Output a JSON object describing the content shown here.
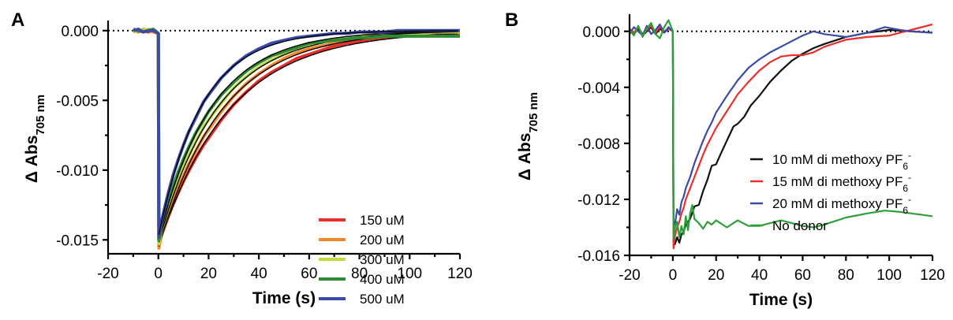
{
  "chart_data": [
    {
      "type": "line",
      "panel_label": "A",
      "xlabel": "Time (s)",
      "ylabel_main": "Δ Abs",
      "ylabel_sub": "705 nm",
      "xlim": [
        -20,
        120
      ],
      "ylim": [
        -0.016,
        0.0005
      ],
      "xticks": [
        -20,
        0,
        20,
        40,
        60,
        80,
        100,
        120
      ],
      "yticks": [
        0.0,
        -0.005,
        -0.01,
        -0.015
      ],
      "ytick_labels": [
        "0.000",
        "-0.005",
        "-0.010",
        "-0.015"
      ],
      "zero_line": "dotted",
      "legend_position": "bottom-right",
      "series": [
        {
          "name": "150 uM",
          "color": "#e8302a",
          "decay_tau": 28,
          "x": [
            -10,
            -8,
            -6,
            -4,
            -2,
            0,
            0.2,
            1,
            2,
            4,
            6,
            8,
            10,
            12,
            15,
            18,
            20,
            25,
            30,
            35,
            40,
            45,
            50,
            55,
            60,
            65,
            70,
            75,
            80,
            85,
            90,
            95,
            100,
            105,
            110,
            115,
            120
          ],
          "y": [
            -0.0001,
            0.0001,
            0.0,
            -0.0001,
            0.0,
            -0.0002,
            -0.0155,
            -0.0148,
            -0.0143,
            -0.0133,
            -0.0124,
            -0.0116,
            -0.0108,
            -0.0101,
            -0.0091,
            -0.0082,
            -0.0077,
            -0.0064,
            -0.0053,
            -0.0044,
            -0.0036,
            -0.003,
            -0.0025,
            -0.002,
            -0.0017,
            -0.0014,
            -0.0011,
            -0.0009,
            -0.0008,
            -0.0006,
            -0.0005,
            -0.0004,
            -0.0003,
            -0.0003,
            -0.0002,
            -0.0002,
            -0.0002
          ]
        },
        {
          "name": "200 uM",
          "color": "#f4872b",
          "decay_tau": 25,
          "x": [
            -10,
            -8,
            -6,
            -4,
            -2,
            0,
            0.2,
            1,
            2,
            4,
            6,
            8,
            10,
            12,
            15,
            18,
            20,
            25,
            30,
            35,
            40,
            45,
            50,
            55,
            60,
            65,
            70,
            75,
            80,
            85,
            90,
            95,
            100,
            105,
            110,
            115,
            120
          ],
          "y": [
            0.0,
            -0.0001,
            0.0001,
            0.0,
            -0.0001,
            -0.0002,
            -0.0156,
            -0.0148,
            -0.0142,
            -0.0131,
            -0.0121,
            -0.0112,
            -0.0104,
            -0.0096,
            -0.0086,
            -0.0076,
            -0.0071,
            -0.0058,
            -0.0047,
            -0.0038,
            -0.0031,
            -0.0025,
            -0.002,
            -0.0016,
            -0.0013,
            -0.0011,
            -0.0009,
            -0.0007,
            -0.0005,
            -0.0004,
            -0.0003,
            -0.0002,
            -0.0002,
            -0.0001,
            -0.0001,
            -0.0001,
            -0.0001
          ]
        },
        {
          "name": "300 uM",
          "color": "#c5d93f",
          "decay_tau": 23,
          "x": [
            -10,
            -8,
            -6,
            -4,
            -2,
            0,
            0.2,
            1,
            2,
            4,
            6,
            8,
            10,
            12,
            15,
            18,
            20,
            25,
            30,
            35,
            40,
            45,
            50,
            55,
            60,
            65,
            70,
            75,
            80,
            85,
            90,
            95,
            100,
            105,
            110,
            115,
            120
          ],
          "y": [
            -0.0001,
            0.0001,
            0.0,
            0.0001,
            0.0,
            -0.0002,
            -0.0153,
            -0.0145,
            -0.0138,
            -0.0126,
            -0.0116,
            -0.0106,
            -0.0097,
            -0.009,
            -0.0079,
            -0.0069,
            -0.0064,
            -0.0052,
            -0.0041,
            -0.0033,
            -0.0026,
            -0.0021,
            -0.0017,
            -0.0013,
            -0.001,
            -0.0008,
            -0.0007,
            -0.0005,
            -0.0004,
            -0.0003,
            -0.0003,
            -0.0002,
            -0.0002,
            -0.0002,
            -0.0001,
            -0.0001,
            -0.0001
          ]
        },
        {
          "name": "400 uM",
          "color": "#2e8b35",
          "decay_tau": 21,
          "x": [
            -10,
            -8,
            -6,
            -4,
            -2,
            0,
            0.2,
            1,
            2,
            4,
            6,
            8,
            10,
            12,
            15,
            18,
            20,
            25,
            30,
            35,
            40,
            45,
            50,
            55,
            60,
            65,
            70,
            75,
            80,
            85,
            90,
            95,
            100,
            105,
            110,
            115,
            120
          ],
          "y": [
            0.0001,
            0.0,
            -0.0001,
            0.0,
            0.0001,
            -0.0002,
            -0.015,
            -0.0142,
            -0.0135,
            -0.0122,
            -0.0111,
            -0.0101,
            -0.0092,
            -0.0084,
            -0.0073,
            -0.0064,
            -0.0058,
            -0.0046,
            -0.0037,
            -0.0029,
            -0.0023,
            -0.0018,
            -0.0015,
            -0.0012,
            -0.0009,
            -0.0008,
            -0.0007,
            -0.0006,
            -0.0005,
            -0.0005,
            -0.0004,
            -0.0004,
            -0.0004,
            -0.0004,
            -0.0004,
            -0.0004,
            -0.0004
          ]
        },
        {
          "name": "500 uM",
          "color": "#3a4ba8",
          "decay_tau": 17,
          "x": [
            -10,
            -8,
            -6,
            -4,
            -2,
            0,
            0.2,
            1,
            2,
            4,
            6,
            8,
            10,
            12,
            15,
            18,
            20,
            25,
            30,
            35,
            40,
            45,
            50,
            55,
            60,
            65,
            70,
            75,
            80,
            85,
            90,
            95,
            100,
            105,
            110,
            115,
            120
          ],
          "y": [
            0.0,
            0.0001,
            -0.0001,
            0.0,
            0.0,
            -0.0002,
            -0.0148,
            -0.0139,
            -0.0131,
            -0.0116,
            -0.0103,
            -0.0092,
            -0.0082,
            -0.0073,
            -0.0062,
            -0.0051,
            -0.0046,
            -0.0034,
            -0.0025,
            -0.0018,
            -0.0013,
            -0.0009,
            -0.0007,
            -0.0005,
            -0.0004,
            -0.0003,
            -0.0002,
            -0.0002,
            -0.0001,
            -0.0001,
            -0.0001,
            0.0,
            0.0,
            0.0,
            0.0,
            0.0,
            0.0
          ]
        }
      ]
    },
    {
      "type": "line",
      "panel_label": "B",
      "xlabel": "Time (s)",
      "ylabel_main": "Δ Abs",
      "ylabel_sub": "705 nm",
      "xlim": [
        -20,
        120
      ],
      "ylim": [
        -0.016,
        0.001
      ],
      "xticks": [
        -20,
        0,
        20,
        40,
        60,
        80,
        100,
        120
      ],
      "yticks": [
        0.0,
        -0.004,
        -0.008,
        -0.012,
        -0.016
      ],
      "ytick_labels": [
        "0.000",
        "-0.004",
        "-0.008",
        "-0.012",
        "-0.016"
      ],
      "zero_line": "dotted",
      "legend_position": "center-right",
      "series": [
        {
          "name": "10 mM di methoxy PF",
          "name_sub": "6",
          "name_sup": "-",
          "color": "#111111",
          "x": [
            -20,
            -18,
            -16,
            -14,
            -12,
            -10,
            -8,
            -6,
            -4,
            -2,
            0,
            0.3,
            1,
            2,
            3,
            4,
            5,
            6,
            8,
            10,
            12,
            14,
            16,
            18,
            20,
            22,
            25,
            28,
            30,
            33,
            36,
            40,
            45,
            50,
            55,
            60,
            65,
            70,
            80,
            90,
            100,
            110,
            120
          ],
          "y": [
            0.0,
            -0.0002,
            0.0002,
            -0.0003,
            0.0,
            0.0003,
            -0.0002,
            0.0002,
            -0.0001,
            0.0002,
            0.0,
            -0.015,
            -0.0152,
            -0.0147,
            -0.0151,
            -0.0145,
            -0.0143,
            -0.0138,
            -0.0134,
            -0.0125,
            -0.0124,
            -0.0114,
            -0.0106,
            -0.0096,
            -0.0095,
            -0.0088,
            -0.0078,
            -0.0068,
            -0.0066,
            -0.0061,
            -0.0053,
            -0.0046,
            -0.0036,
            -0.0028,
            -0.0021,
            -0.0016,
            -0.0012,
            -0.0009,
            -0.0004,
            -0.0001,
            0.0001,
            0.0,
            -0.0001
          ]
        },
        {
          "name": "15 mM di methoxy PF",
          "name_sub": "6",
          "name_sup": "-",
          "color": "#e8302a",
          "x": [
            -20,
            -18,
            -16,
            -14,
            -12,
            -10,
            -8,
            -6,
            -4,
            -2,
            0,
            0.3,
            1,
            2,
            3,
            4,
            5,
            6,
            8,
            10,
            12,
            14,
            16,
            18,
            20,
            25,
            30,
            35,
            40,
            45,
            50,
            55,
            60,
            65,
            70,
            80,
            90,
            100,
            110,
            120
          ],
          "y": [
            0.0002,
            -0.0001,
            0.0003,
            -0.0002,
            0.0001,
            0.0004,
            -0.0001,
            0.0003,
            0.0,
            0.0002,
            0.0,
            -0.0155,
            -0.0146,
            -0.014,
            -0.0136,
            -0.013,
            -0.0126,
            -0.012,
            -0.0112,
            -0.0104,
            -0.0096,
            -0.0088,
            -0.0081,
            -0.0075,
            -0.0069,
            -0.0057,
            -0.0045,
            -0.0036,
            -0.0028,
            -0.0022,
            -0.0018,
            -0.0017,
            -0.0017,
            -0.0015,
            -0.0011,
            -0.0006,
            -0.0004,
            -0.0003,
            0.0001,
            0.0005
          ]
        },
        {
          "name": "20 mM di methoxy PF",
          "name_sub": "6",
          "name_sup": "-",
          "color": "#3a4ba8",
          "x": [
            -20,
            -18,
            -16,
            -14,
            -12,
            -10,
            -8,
            -6,
            -4,
            -2,
            0,
            0.3,
            1,
            2,
            3,
            4,
            5,
            6,
            8,
            10,
            12,
            14,
            16,
            18,
            20,
            25,
            30,
            35,
            40,
            45,
            50,
            55,
            60,
            65,
            70,
            80,
            90,
            98,
            105,
            110,
            120
          ],
          "y": [
            -0.0002,
            0.0003,
            0.0,
            -0.0003,
            0.0004,
            -0.0002,
            0.0001,
            0.0005,
            -0.0001,
            0.0003,
            0.0,
            -0.0135,
            -0.0138,
            -0.0127,
            -0.0131,
            -0.0122,
            -0.0118,
            -0.0112,
            -0.0104,
            -0.0094,
            -0.0086,
            -0.0078,
            -0.0071,
            -0.0065,
            -0.0058,
            -0.0046,
            -0.0035,
            -0.0026,
            -0.002,
            -0.0015,
            -0.0011,
            -0.0007,
            -0.0003,
            0.0,
            -0.0002,
            -0.0004,
            -0.0001,
            0.0003,
            0.0001,
            0.0,
            -0.0001
          ]
        },
        {
          "name": "No donor",
          "name_sub": "",
          "name_sup": "",
          "color": "#2e9e3a",
          "x": [
            -20,
            -18,
            -16,
            -14,
            -12,
            -10,
            -8,
            -6,
            -4,
            -2,
            0,
            0.3,
            1,
            2,
            3,
            4,
            5,
            6,
            7,
            8,
            9,
            10,
            12,
            14,
            16,
            18,
            20,
            25,
            30,
            35,
            40,
            45,
            50,
            55,
            60,
            65,
            70,
            80,
            90,
            98,
            105,
            110,
            120
          ],
          "y": [
            0.0001,
            -0.0003,
            0.0004,
            -0.0004,
            0.0002,
            0.0006,
            -0.0002,
            -0.0005,
            0.0003,
            0.0008,
            0.0,
            -0.0148,
            -0.014,
            -0.0136,
            -0.0147,
            -0.0139,
            -0.0145,
            -0.0132,
            -0.0142,
            -0.013,
            -0.0124,
            -0.0134,
            -0.0137,
            -0.0141,
            -0.0136,
            -0.0138,
            -0.0135,
            -0.014,
            -0.0135,
            -0.0139,
            -0.0139,
            -0.0137,
            -0.0135,
            -0.0137,
            -0.0139,
            -0.014,
            -0.0138,
            -0.0133,
            -0.013,
            -0.0128,
            -0.0129,
            -0.013,
            -0.0132
          ]
        }
      ]
    }
  ]
}
